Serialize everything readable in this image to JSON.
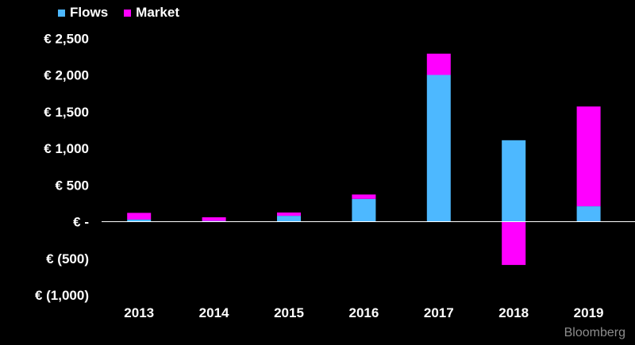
{
  "chart_data": {
    "type": "bar",
    "stacked": true,
    "categories": [
      "2013",
      "2014",
      "2015",
      "2016",
      "2017",
      "2018",
      "2019"
    ],
    "series": [
      {
        "name": "Flows",
        "color": "#4db8ff",
        "values": [
          30,
          10,
          80,
          310,
          2000,
          1110,
          210
        ]
      },
      {
        "name": "Market",
        "color": "#ff00ff",
        "values": [
          90,
          50,
          45,
          60,
          290,
          -590,
          1360
        ]
      }
    ],
    "yticks": [
      2500,
      2000,
      1500,
      1000,
      500,
      0,
      -500,
      -1000
    ],
    "ytick_labels": [
      "€ 2,500",
      "€ 2,000",
      "€ 1,500",
      "€ 1,000",
      "€ 500",
      "€ -",
      "€ (500)",
      "€ (1,000)"
    ],
    "ylim": [
      -1000,
      2500
    ],
    "legend_position": "top-left",
    "grid": false
  },
  "source": "Bloomberg"
}
